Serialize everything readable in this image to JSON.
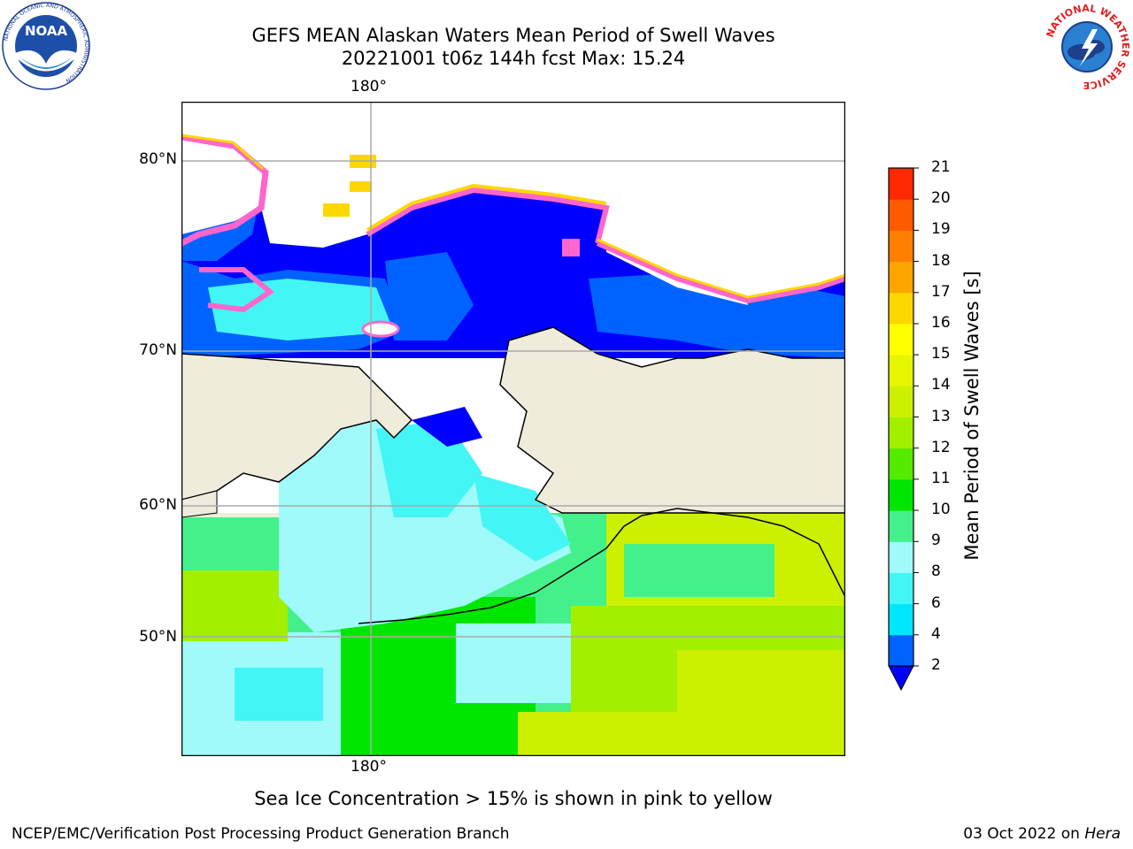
{
  "title": {
    "line1": "GEFS MEAN Alaskan Waters Mean Period of Swell Waves",
    "line2": "20221001 t06z 144h fcst   Max: 15.24"
  },
  "map": {
    "lon_label_top": "180°",
    "lon_label_bottom": "180°",
    "lat_labels": [
      "80°N",
      "70°N",
      "60°N",
      "50°N"
    ],
    "land_color": "#efecdc",
    "ice_colors": [
      "#ff66cc",
      "#ffd700"
    ]
  },
  "colorbar": {
    "title": "Mean Period of Swell Waves [s]",
    "ticks": [
      "2",
      "4",
      "6",
      "8",
      "9",
      "10",
      "11",
      "12",
      "13",
      "14",
      "15",
      "16",
      "17",
      "18",
      "19",
      "20",
      "21"
    ],
    "colors": [
      "#0063ff",
      "#00e6ff",
      "#44f5f5",
      "#a0fafa",
      "#44f08a",
      "#00e600",
      "#55eb00",
      "#a2ef00",
      "#ccf000",
      "#e6f500",
      "#ffff00",
      "#ffd700",
      "#ffa500",
      "#ff8000",
      "#ff5a00",
      "#ff2800"
    ],
    "under_color": "#0000ff"
  },
  "ice_note": "Sea Ice Concentration > 15% is shown in pink to yellow",
  "footer": {
    "left": "NCEP/EMC/Verification Post Processing Product Generation Branch",
    "date": "03 Oct 2022 on ",
    "host": "Hera"
  },
  "logos": {
    "noaa": "NOAA",
    "noaa_ring": "NATIONAL OCEANIC AND ATMOSPHERIC ADMINISTRATION",
    "noaa_ring_bottom": "U.S. DEPARTMENT OF COMMERCE",
    "nws_ring": "NATIONAL WEATHER SERVICE"
  }
}
